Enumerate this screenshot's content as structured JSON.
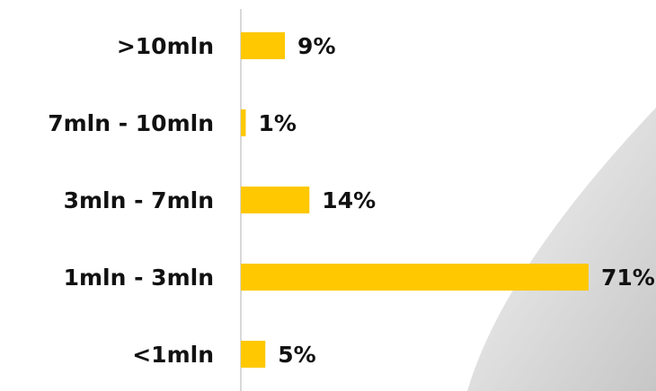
{
  "chart_data": {
    "type": "bar",
    "orientation": "horizontal",
    "categories": [
      ">10mln",
      "7mln - 10mln",
      "3mln - 7mln",
      "1mln - 3mln",
      "<1mln"
    ],
    "values": [
      9,
      1,
      14,
      71,
      5
    ],
    "value_labels": [
      "9%",
      "1%",
      "14%",
      "71%",
      "5%"
    ],
    "color": "#ffc800"
  }
}
